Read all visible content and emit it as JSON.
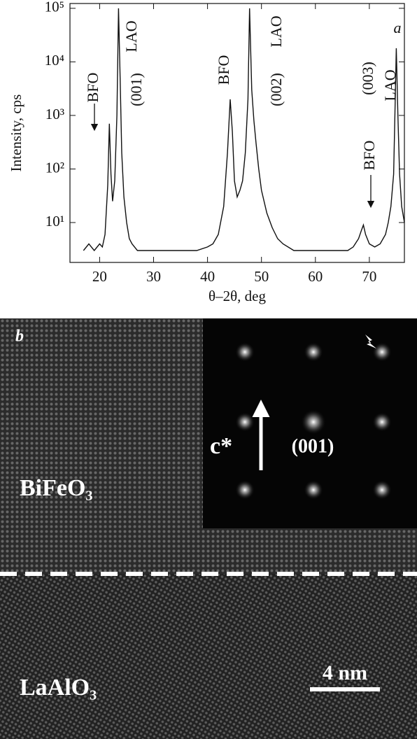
{
  "chart_data": {
    "type": "line",
    "panel": "a",
    "xlabel": "θ–2θ, deg",
    "ylabel": "Intensity, cps",
    "x": [
      17,
      18,
      19,
      20,
      20.5,
      21,
      21.5,
      21.8,
      22.1,
      22.4,
      22.8,
      23.2,
      23.5,
      23.8,
      24.1,
      24.5,
      25,
      25.5,
      26,
      27,
      28,
      30,
      32,
      34,
      36,
      38,
      40,
      41,
      42,
      43,
      43.7,
      44.2,
      44.6,
      45,
      45.5,
      46,
      46.5,
      47,
      47.5,
      47.8,
      48.2,
      48.6,
      49,
      49.5,
      50,
      51,
      52,
      53,
      54,
      56,
      58,
      60,
      62,
      64,
      66,
      67,
      68,
      68.5,
      68.9,
      69.3,
      70,
      71,
      72,
      73,
      73.5,
      74,
      74.5,
      74.8,
      75,
      75.3,
      75.6,
      76,
      76.5
    ],
    "series": [
      {
        "color": "#111111",
        "values": [
          3,
          4,
          3,
          4,
          3.5,
          6,
          50,
          700,
          80,
          25,
          60,
          1000,
          100000,
          5000,
          200,
          30,
          10,
          5,
          4,
          3,
          3,
          3,
          3,
          3,
          3,
          3,
          3.5,
          4,
          6,
          20,
          200,
          2000,
          500,
          60,
          30,
          40,
          60,
          200,
          2000,
          100000,
          3000,
          800,
          300,
          100,
          40,
          15,
          8,
          5,
          4,
          3,
          3,
          3,
          3,
          3,
          3,
          3.5,
          5,
          7,
          9,
          6,
          4,
          3.5,
          4,
          6,
          10,
          20,
          80,
          2000,
          18000,
          1000,
          80,
          20,
          10
        ]
      }
    ],
    "xlim": [
      14.5,
      76.5
    ],
    "xticks": [
      20,
      30,
      40,
      50,
      60,
      70
    ],
    "ylim": [
      1.8,
      123000
    ],
    "ylog": true,
    "yticks": [
      {
        "value": 10,
        "label": "10¹"
      },
      {
        "value": 100,
        "label": "10²"
      },
      {
        "value": 1000,
        "label": "10³"
      },
      {
        "value": 10000,
        "label": "10⁴"
      },
      {
        "value": 100000,
        "label": "10⁵"
      }
    ],
    "annotations": [
      "BFO",
      "LAO",
      "(001)",
      "BFO",
      "LAO",
      "(002)",
      "(003)",
      "LAO",
      "BFO"
    ]
  },
  "image": {
    "panel": "b",
    "film": "BiFeO₃",
    "substrate": "LaAlO₃",
    "scale": "4 nm",
    "axis": "c*",
    "zone": "(001)"
  }
}
